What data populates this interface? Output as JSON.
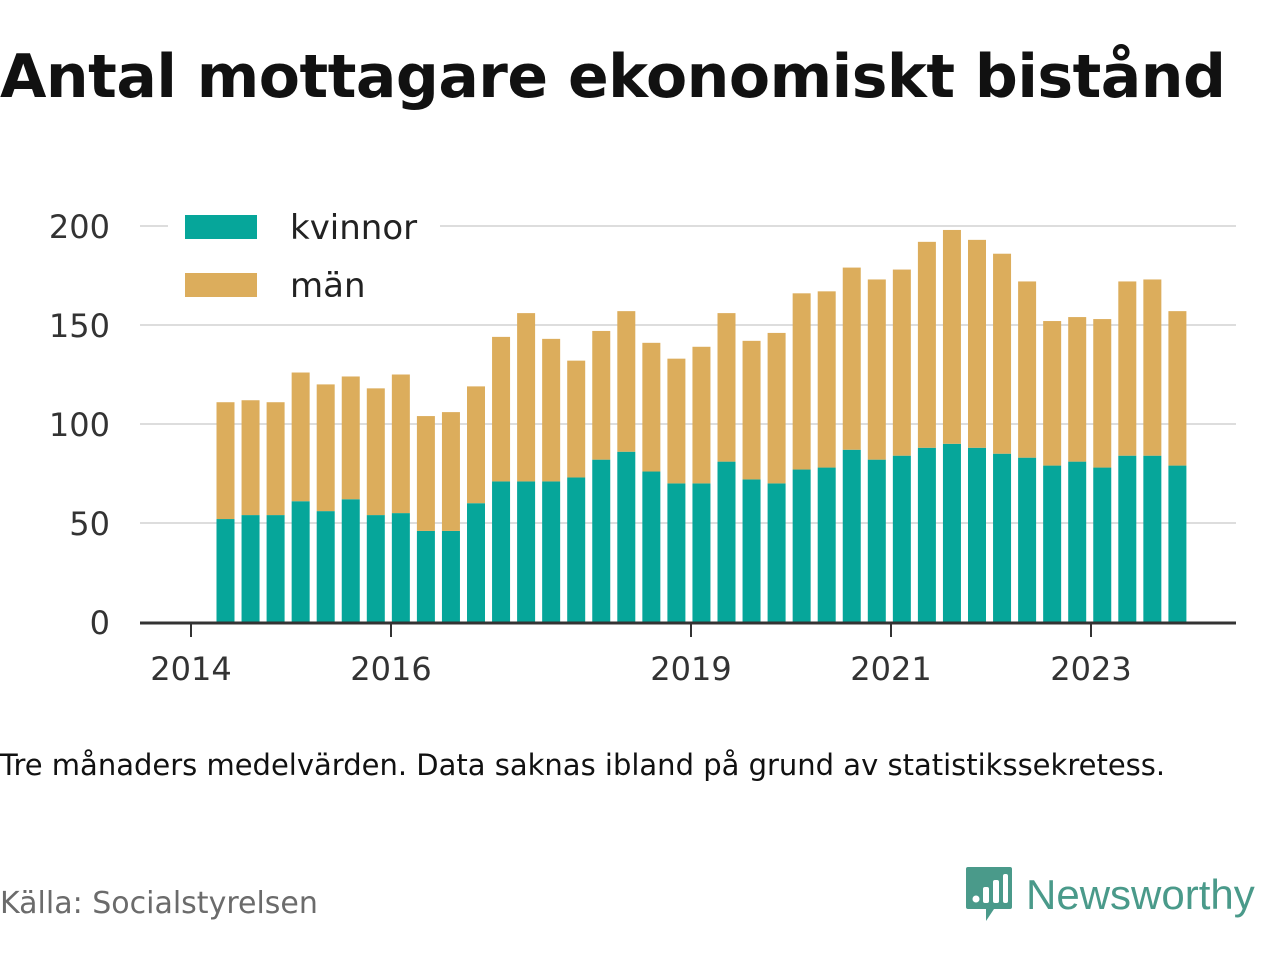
{
  "header": {
    "title": "Antal mottagare ekonomiskt bistånd"
  },
  "footer": {
    "note": "Tre månaders medelvärden. Data saknas ibland på grund av statistikssekretess.",
    "source": "Källa: Socialstyrelsen",
    "brand": "Newsworthy"
  },
  "colors": {
    "kvinnor": "#06a69a",
    "man": "#dcad5c",
    "grid": "#dddddd",
    "axis": "#333333",
    "brand": "#4a9a8a"
  },
  "chart_data": {
    "type": "bar",
    "stacked": true,
    "title": "Antal mottagare ekonomiskt bistånd",
    "xlabel": "",
    "ylabel": "",
    "ylim": [
      0,
      200
    ],
    "yticks": [
      0,
      50,
      100,
      150,
      200
    ],
    "xticks": [
      "2014",
      "2016",
      "2019",
      "2021",
      "2023"
    ],
    "grid": true,
    "legend_position": "top-left",
    "series": [
      {
        "name": "kvinnor",
        "values": [
          52,
          54,
          54,
          61,
          56,
          62,
          54,
          55,
          46,
          46,
          60,
          71,
          71,
          71,
          73,
          82,
          86,
          76,
          70,
          70,
          81,
          72,
          70,
          77,
          78,
          87,
          82,
          84,
          88,
          90,
          88,
          85,
          83,
          79,
          81,
          78,
          84,
          84,
          79
        ]
      },
      {
        "name": "män",
        "values": [
          59,
          58,
          57,
          65,
          64,
          62,
          64,
          70,
          58,
          60,
          59,
          73,
          85,
          72,
          59,
          65,
          71,
          65,
          63,
          69,
          75,
          70,
          76,
          89,
          89,
          92,
          91,
          94,
          104,
          108,
          105,
          101,
          89,
          73,
          73,
          75,
          88,
          89,
          78
        ]
      }
    ]
  }
}
